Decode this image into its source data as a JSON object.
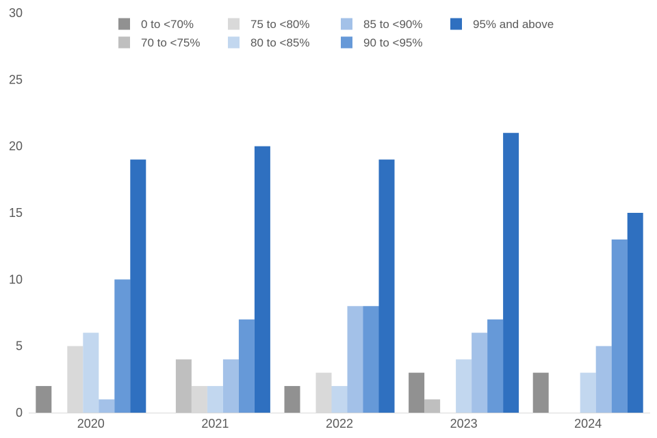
{
  "chart_data": {
    "type": "bar",
    "categories": [
      "2020",
      "2021",
      "2022",
      "2023",
      "2024"
    ],
    "ylim": [
      0,
      30
    ],
    "yticks": [
      0,
      5,
      10,
      15,
      20,
      25,
      30
    ],
    "grid": false,
    "legend_position": "top",
    "series": [
      {
        "name": "0 to <70%",
        "color": "#919191",
        "values": [
          2,
          0,
          2,
          3,
          3
        ]
      },
      {
        "name": "70 to <75%",
        "color": "#bfbfbf",
        "values": [
          0,
          4,
          0,
          1,
          0
        ]
      },
      {
        "name": "75 to <80%",
        "color": "#d9d9d9",
        "values": [
          5,
          2,
          3,
          0,
          0
        ]
      },
      {
        "name": "80 to <85%",
        "color": "#c2d7ef",
        "values": [
          6,
          2,
          2,
          4,
          3
        ]
      },
      {
        "name": "85 to <90%",
        "color": "#a3c1e8",
        "values": [
          1,
          4,
          8,
          6,
          5
        ]
      },
      {
        "name": "90 to <95%",
        "color": "#6699d8",
        "values": [
          10,
          7,
          8,
          7,
          13
        ]
      },
      {
        "name": "95% and above",
        "color": "#2f70c0",
        "values": [
          19,
          20,
          19,
          21,
          15
        ]
      }
    ]
  }
}
